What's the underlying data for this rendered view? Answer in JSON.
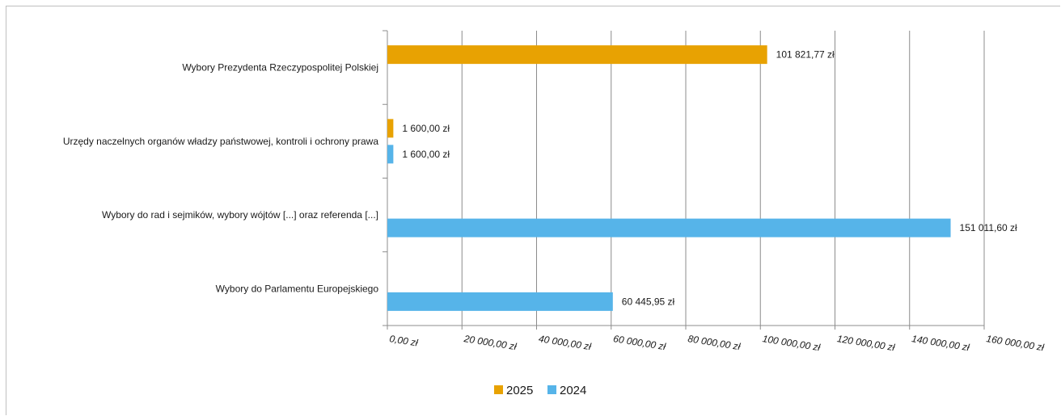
{
  "chart_data": {
    "type": "bar",
    "orientation": "horizontal",
    "categories": [
      "Wybory Prezydenta Rzeczypospolitej Polskiej",
      "Urzędy naczelnych organów władzy państwowej, kontroli i ochrony prawa",
      "Wybory do rad i sejmików, wybory wójtów [...] oraz referenda [...]",
      "Wybory do Parlamentu Europejskiego"
    ],
    "series": [
      {
        "name": "2025",
        "color": "#E8A202",
        "values": [
          101821.77,
          1600.0,
          null,
          null
        ],
        "labels": [
          "101 821,77 zł",
          "1 600,00 zł",
          "",
          ""
        ]
      },
      {
        "name": "2024",
        "color": "#56B4E9",
        "values": [
          null,
          1600.0,
          151011.6,
          60445.95
        ],
        "labels": [
          "",
          "1 600,00 zł",
          "151 011,60 zł",
          "60 445,95 zł"
        ]
      }
    ],
    "xlim": [
      0,
      160000
    ],
    "ticks": [
      0,
      20000,
      40000,
      60000,
      80000,
      100000,
      120000,
      140000,
      160000
    ],
    "tick_labels": [
      "0,00 zł",
      "20 000,00 zł",
      "40 000,00 zł",
      "60 000,00 zł",
      "80 000,00 zł",
      "100 000,00 zł",
      "120 000,00 zł",
      "140 000,00 zł",
      "160 000,00 zł"
    ],
    "grid": "vertical",
    "legend_position": "bottom",
    "title": "",
    "xlabel": "",
    "ylabel": ""
  }
}
